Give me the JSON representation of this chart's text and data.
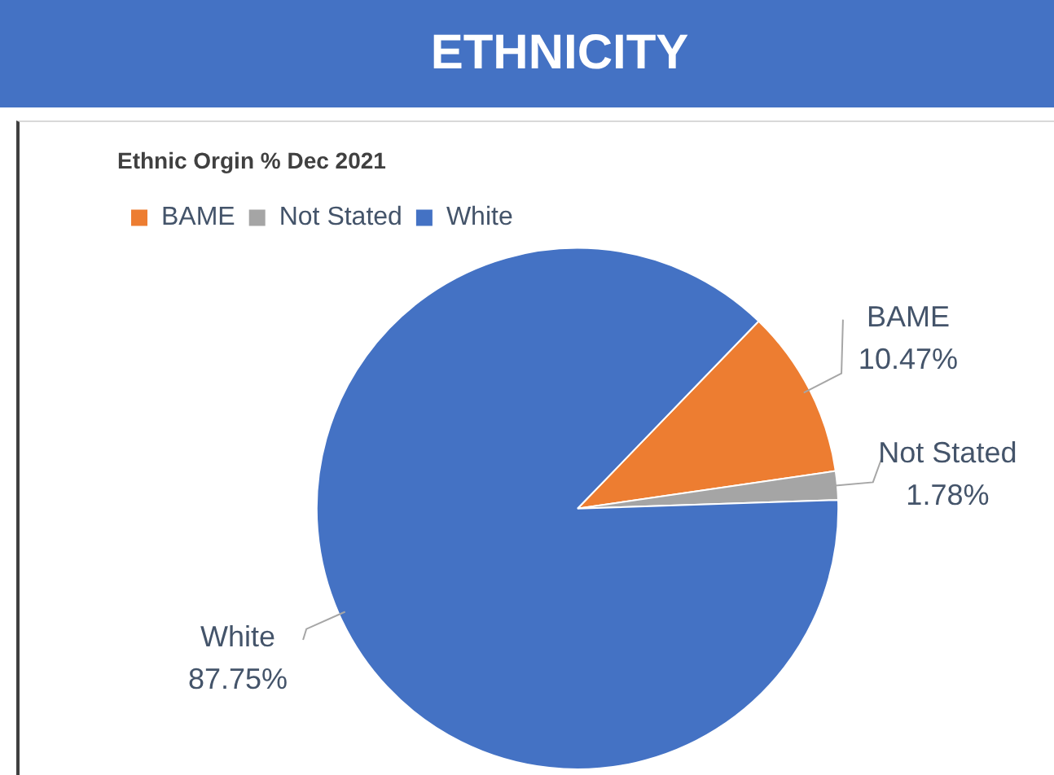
{
  "chart_data": {
    "type": "pie",
    "title": "ETHNICITY",
    "subtitle": "Ethnic Orgin % Dec 2021",
    "categories": [
      "BAME",
      "Not Stated",
      "White"
    ],
    "values": [
      10.47,
      1.78,
      87.75
    ],
    "value_labels": [
      "10.47%",
      "1.78%",
      "87.75%"
    ],
    "colors": [
      "#ed7d31",
      "#a5a5a5",
      "#4472c4"
    ],
    "legend": "top left"
  }
}
